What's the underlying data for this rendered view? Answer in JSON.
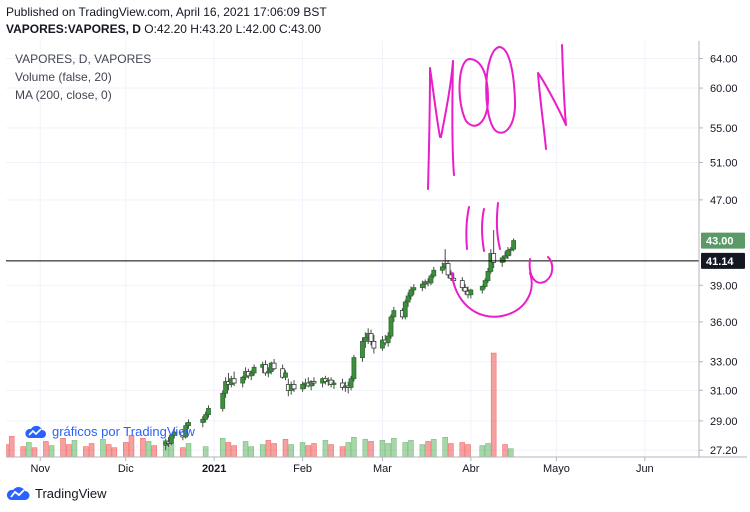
{
  "header": {
    "published": "Published on TradingView.com, April 16, 2021 17:06:09 BST",
    "symbol": "VAPORES:VAPORES, D",
    "ohlc": "O:42.20 H:43.20 L:42.00 C:43.00"
  },
  "legend": {
    "title": "VAPORES, D, VAPORES",
    "volume": "Volume (false, 20)",
    "ma": "MA (200, close, 0)"
  },
  "watermark": "gráficos por TradingView",
  "footer": {
    "brand": "TradingView"
  },
  "colors": {
    "up": "#26a69a",
    "up_body": "#3c8f3c",
    "down": "#ef5350",
    "annotation": "#e91ec9",
    "last_price_bg": "#5b9a68",
    "line_price_bg": "#131722"
  },
  "chart_data": {
    "type": "candlestick",
    "y_scale": "log",
    "y_ticks": [
      "64.00",
      "60.00",
      "55.00",
      "51.00",
      "47.00",
      "39.00",
      "36.00",
      "33.00",
      "31.00",
      "29.00",
      "27.20"
    ],
    "y_range": [
      26.8,
      66.5
    ],
    "x_ticks": [
      "Nov",
      "Dic",
      "2021",
      "Feb",
      "Mar",
      "Abr",
      "Mayo",
      "Jun"
    ],
    "x_range": [
      "2020-10-20",
      "2021-06-20"
    ],
    "last_price_label": "43.00",
    "horizontal_line_label": "41.14",
    "horizontal_line_value": 41.14,
    "annotation_text": "MOON",
    "candles": [
      [
        "2020-12-15",
        27.5,
        27.9,
        27.2,
        27.7
      ],
      [
        "2020-12-16",
        27.7,
        28.0,
        27.4,
        27.6
      ],
      [
        "2020-12-17",
        27.6,
        28.2,
        27.5,
        28.1
      ],
      [
        "2020-12-18",
        28.1,
        28.5,
        27.9,
        28.3
      ],
      [
        "2020-12-21",
        28.3,
        28.4,
        27.8,
        28.0
      ],
      [
        "2020-12-22",
        28.0,
        28.9,
        27.9,
        28.7
      ],
      [
        "2020-12-23",
        28.7,
        29.1,
        28.5,
        28.9
      ],
      [
        "2020-12-28",
        28.9,
        29.3,
        28.6,
        29.1
      ],
      [
        "2020-12-29",
        29.1,
        29.6,
        28.9,
        29.4
      ],
      [
        "2020-12-30",
        29.4,
        30.0,
        29.2,
        29.8
      ],
      [
        "2021-01-04",
        29.8,
        31.0,
        29.6,
        30.8
      ],
      [
        "2021-01-05",
        30.8,
        31.9,
        30.5,
        31.6
      ],
      [
        "2021-01-06",
        31.6,
        32.2,
        31.0,
        31.4
      ],
      [
        "2021-01-07",
        31.4,
        32.0,
        31.2,
        31.8
      ],
      [
        "2021-01-08",
        31.8,
        32.3,
        31.3,
        31.5
      ],
      [
        "2021-01-11",
        31.5,
        32.0,
        31.2,
        31.9
      ],
      [
        "2021-01-12",
        31.9,
        32.6,
        31.7,
        32.3
      ],
      [
        "2021-01-13",
        32.3,
        32.5,
        31.8,
        32.0
      ],
      [
        "2021-01-14",
        32.0,
        32.4,
        31.7,
        32.2
      ],
      [
        "2021-01-15",
        32.2,
        32.8,
        32.0,
        32.6
      ],
      [
        "2021-01-18",
        32.6,
        33.0,
        32.2,
        32.8
      ],
      [
        "2021-01-19",
        32.8,
        33.1,
        32.0,
        32.2
      ],
      [
        "2021-01-20",
        32.2,
        32.6,
        31.9,
        32.3
      ],
      [
        "2021-01-21",
        32.3,
        33.0,
        32.1,
        32.9
      ],
      [
        "2021-01-22",
        32.9,
        33.2,
        32.4,
        32.5
      ],
      [
        "2021-01-25",
        32.5,
        32.8,
        31.8,
        31.9
      ],
      [
        "2021-01-26",
        31.9,
        32.4,
        31.7,
        32.2
      ],
      [
        "2021-01-27",
        31.4,
        31.8,
        30.6,
        31.0
      ],
      [
        "2021-01-28",
        31.0,
        31.6,
        30.7,
        31.4
      ],
      [
        "2021-01-29",
        31.4,
        31.7,
        30.9,
        31.1
      ],
      [
        "2021-02-01",
        31.1,
        31.6,
        30.9,
        31.4
      ],
      [
        "2021-02-02",
        31.4,
        31.8,
        31.1,
        31.5
      ],
      [
        "2021-02-03",
        31.5,
        31.9,
        31.2,
        31.3
      ],
      [
        "2021-02-04",
        31.3,
        31.7,
        31.0,
        31.6
      ],
      [
        "2021-02-05",
        31.6,
        31.9,
        31.3,
        31.5
      ],
      [
        "2021-02-08",
        31.5,
        31.9,
        31.2,
        31.8
      ],
      [
        "2021-02-09",
        31.8,
        32.0,
        31.4,
        31.6
      ],
      [
        "2021-02-10",
        31.6,
        31.9,
        31.3,
        31.7
      ],
      [
        "2021-02-11",
        31.7,
        31.9,
        31.2,
        31.4
      ],
      [
        "2021-02-12",
        31.4,
        31.7,
        31.1,
        31.5
      ],
      [
        "2021-02-15",
        31.5,
        31.8,
        31.0,
        31.2
      ],
      [
        "2021-02-16",
        31.2,
        31.6,
        30.9,
        31.3
      ],
      [
        "2021-02-17",
        31.3,
        31.6,
        30.8,
        31.2
      ],
      [
        "2021-02-18",
        31.2,
        32.0,
        31.0,
        31.8
      ],
      [
        "2021-02-19",
        31.8,
        33.5,
        31.6,
        33.3
      ],
      [
        "2021-02-22",
        33.3,
        34.8,
        33.0,
        34.5
      ],
      [
        "2021-02-23",
        34.5,
        35.2,
        34.0,
        34.8
      ],
      [
        "2021-02-24",
        34.8,
        35.5,
        34.3,
        35.1
      ],
      [
        "2021-02-25",
        35.1,
        35.4,
        34.2,
        34.5
      ],
      [
        "2021-02-26",
        34.5,
        35.0,
        33.6,
        34.0
      ],
      [
        "2021-03-01",
        34.0,
        34.9,
        33.8,
        34.6
      ],
      [
        "2021-03-02",
        34.6,
        35.0,
        34.2,
        34.4
      ],
      [
        "2021-03-03",
        34.4,
        35.2,
        34.1,
        34.9
      ],
      [
        "2021-03-04",
        34.9,
        36.6,
        34.7,
        36.4
      ],
      [
        "2021-03-05",
        36.4,
        37.2,
        36.0,
        36.9
      ],
      [
        "2021-03-08",
        36.9,
        37.1,
        36.2,
        36.4
      ],
      [
        "2021-03-09",
        36.4,
        37.8,
        36.2,
        37.6
      ],
      [
        "2021-03-10",
        37.6,
        38.4,
        37.2,
        38.1
      ],
      [
        "2021-03-11",
        38.1,
        38.9,
        37.8,
        38.6
      ],
      [
        "2021-03-12",
        38.6,
        39.1,
        38.2,
        38.8
      ],
      [
        "2021-03-15",
        38.8,
        39.4,
        38.5,
        39.1
      ],
      [
        "2021-03-16",
        39.1,
        39.5,
        38.7,
        39.3
      ],
      [
        "2021-03-17",
        39.3,
        39.6,
        38.9,
        39.2
      ],
      [
        "2021-03-18",
        39.2,
        40.0,
        39.0,
        39.8
      ],
      [
        "2021-03-19",
        39.8,
        40.6,
        39.6,
        40.3
      ],
      [
        "2021-03-22",
        40.3,
        41.0,
        40.0,
        40.6
      ],
      [
        "2021-03-23",
        40.6,
        42.2,
        40.4,
        40.9
      ],
      [
        "2021-03-24",
        40.9,
        41.2,
        39.6,
        39.9
      ],
      [
        "2021-03-25",
        39.9,
        40.3,
        39.4,
        39.6
      ],
      [
        "2021-03-26",
        39.6,
        40.1,
        39.2,
        39.4
      ],
      [
        "2021-03-29",
        39.4,
        39.7,
        38.5,
        38.8
      ],
      [
        "2021-03-30",
        38.8,
        39.1,
        38.2,
        38.5
      ],
      [
        "2021-03-31",
        38.5,
        38.9,
        37.9,
        38.2
      ],
      [
        "2021-04-01",
        38.2,
        38.7,
        37.9,
        38.6
      ],
      [
        "2021-04-05",
        38.6,
        39.0,
        38.3,
        38.9
      ],
      [
        "2021-04-06",
        38.9,
        39.6,
        38.7,
        39.4
      ],
      [
        "2021-04-07",
        39.4,
        40.5,
        39.2,
        40.2
      ],
      [
        "2021-04-08",
        40.2,
        42.2,
        40.0,
        41.8
      ],
      [
        "2021-04-09",
        41.8,
        44.0,
        40.5,
        41.0
      ],
      [
        "2021-04-12",
        41.0,
        41.6,
        40.6,
        41.4
      ],
      [
        "2021-04-13",
        41.4,
        42.0,
        41.0,
        41.6
      ],
      [
        "2021-04-14",
        41.6,
        42.4,
        41.3,
        42.1
      ],
      [
        "2021-04-15",
        42.1,
        42.4,
        41.6,
        42.2
      ],
      [
        "2021-04-16",
        42.2,
        43.2,
        42.0,
        43.0
      ]
    ],
    "volume": {
      "max": 100,
      "series": [
        [
          "2020-10-20",
          12,
          "down"
        ],
        [
          "2020-10-22",
          20,
          "down"
        ],
        [
          "2020-10-26",
          10,
          "down"
        ],
        [
          "2020-10-28",
          14,
          "up"
        ],
        [
          "2020-10-30",
          9,
          "down"
        ],
        [
          "2020-11-03",
          15,
          "down"
        ],
        [
          "2020-11-05",
          11,
          "up"
        ],
        [
          "2020-11-09",
          18,
          "down"
        ],
        [
          "2020-11-11",
          12,
          "down"
        ],
        [
          "2020-11-13",
          16,
          "up"
        ],
        [
          "2020-11-17",
          10,
          "down"
        ],
        [
          "2020-11-19",
          13,
          "down"
        ],
        [
          "2020-11-23",
          17,
          "up"
        ],
        [
          "2020-11-25",
          12,
          "down"
        ],
        [
          "2020-11-27",
          9,
          "down"
        ],
        [
          "2020-12-01",
          14,
          "down"
        ],
        [
          "2020-12-03",
          21,
          "down"
        ],
        [
          "2020-12-07",
          18,
          "down"
        ],
        [
          "2020-12-09",
          15,
          "up"
        ],
        [
          "2020-12-11",
          11,
          "down"
        ],
        [
          "2020-12-15",
          16,
          "up"
        ],
        [
          "2020-12-17",
          12,
          "up"
        ],
        [
          "2020-12-21",
          9,
          "down"
        ],
        [
          "2020-12-23",
          13,
          "up"
        ],
        [
          "2020-12-29",
          10,
          "up"
        ],
        [
          "2021-01-04",
          18,
          "up"
        ],
        [
          "2021-01-06",
          14,
          "down"
        ],
        [
          "2021-01-08",
          11,
          "down"
        ],
        [
          "2021-01-12",
          15,
          "up"
        ],
        [
          "2021-01-14",
          10,
          "up"
        ],
        [
          "2021-01-18",
          12,
          "up"
        ],
        [
          "2021-01-20",
          16,
          "down"
        ],
        [
          "2021-01-22",
          13,
          "down"
        ],
        [
          "2021-01-26",
          17,
          "down"
        ],
        [
          "2021-01-28",
          12,
          "up"
        ],
        [
          "2021-02-01",
          14,
          "up"
        ],
        [
          "2021-02-03",
          11,
          "down"
        ],
        [
          "2021-02-05",
          13,
          "down"
        ],
        [
          "2021-02-09",
          16,
          "up"
        ],
        [
          "2021-02-11",
          12,
          "down"
        ],
        [
          "2021-02-15",
          10,
          "down"
        ],
        [
          "2021-02-17",
          14,
          "up"
        ],
        [
          "2021-02-19",
          19,
          "up"
        ],
        [
          "2021-02-23",
          17,
          "up"
        ],
        [
          "2021-02-25",
          15,
          "down"
        ],
        [
          "2021-03-01",
          16,
          "up"
        ],
        [
          "2021-03-03",
          13,
          "up"
        ],
        [
          "2021-03-05",
          18,
          "up"
        ],
        [
          "2021-03-09",
          14,
          "up"
        ],
        [
          "2021-03-11",
          16,
          "up"
        ],
        [
          "2021-03-15",
          12,
          "up"
        ],
        [
          "2021-03-17",
          15,
          "down"
        ],
        [
          "2021-03-19",
          17,
          "up"
        ],
        [
          "2021-03-23",
          19,
          "up"
        ],
        [
          "2021-03-25",
          13,
          "down"
        ],
        [
          "2021-03-29",
          14,
          "down"
        ],
        [
          "2021-03-31",
          12,
          "down"
        ],
        [
          "2021-04-05",
          11,
          "up"
        ],
        [
          "2021-04-07",
          13,
          "up"
        ],
        [
          "2021-04-09",
          100,
          "down"
        ],
        [
          "2021-04-13",
          12,
          "down"
        ],
        [
          "2021-04-15",
          8,
          "up"
        ]
      ]
    }
  }
}
